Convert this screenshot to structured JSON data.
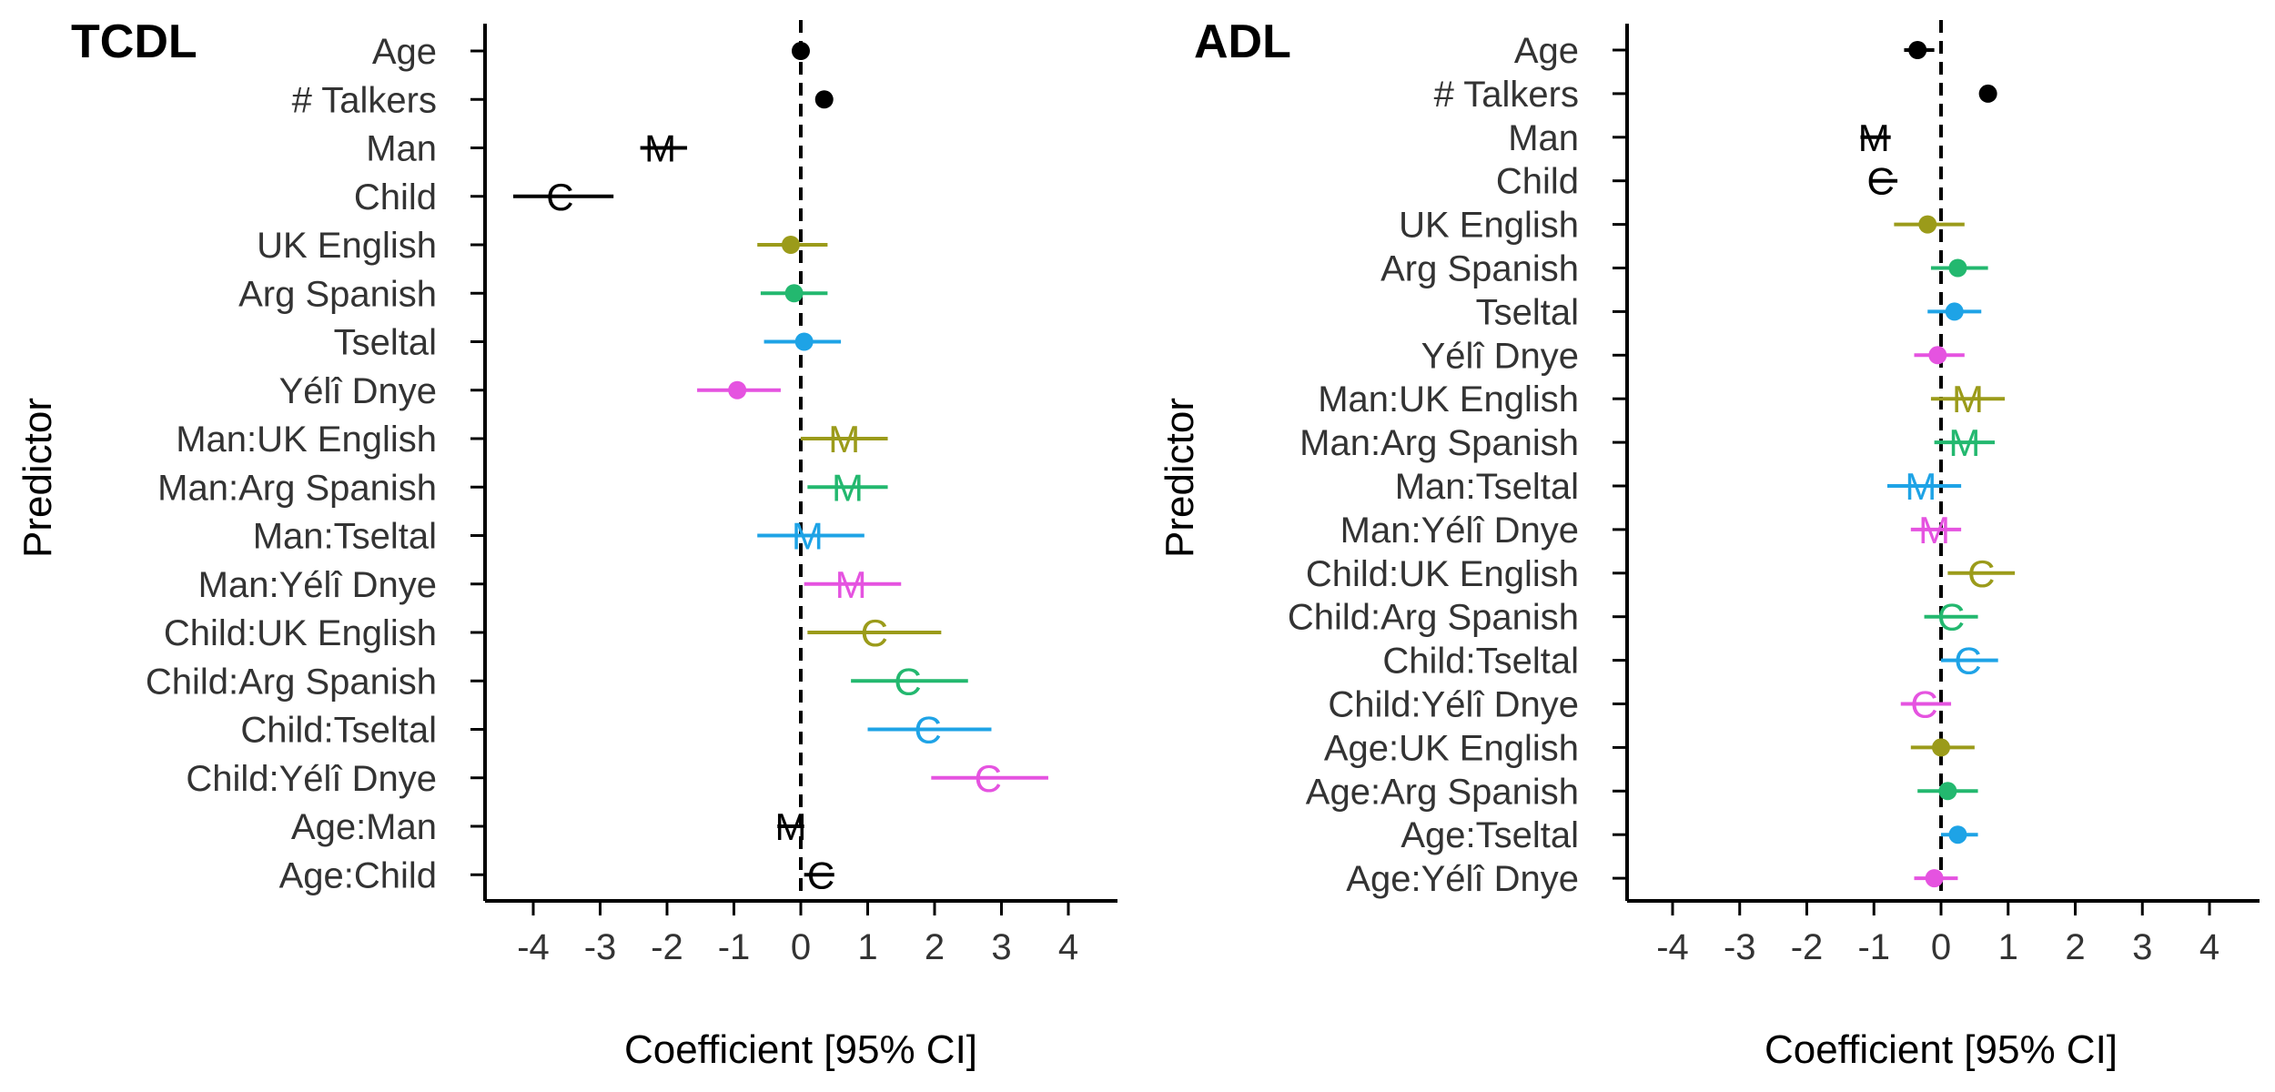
{
  "figure": {
    "y_axis_title": "Predictor",
    "x_axis_title": "Coefficient [95% CI]"
  },
  "chart_data": [
    {
      "type": "scatter",
      "panel": "TCDL",
      "title": "TCDL",
      "xlabel": "Coefficient [95% CI]",
      "ylabel": "Predictor",
      "xlim": [
        -4.7,
        4.7
      ],
      "xticks": [
        -4,
        -3,
        -2,
        -1,
        0,
        1,
        2,
        3,
        4
      ],
      "reference_line": {
        "x": 0,
        "style": "dashed"
      },
      "grid": false,
      "points": [
        {
          "label": "Age",
          "estimate": 0.0,
          "lower": -0.1,
          "upper": 0.1,
          "marker": "dot",
          "color": "#000000"
        },
        {
          "label": "# Talkers",
          "estimate": 0.35,
          "lower": 0.3,
          "upper": 0.4,
          "marker": "dot",
          "color": "#000000"
        },
        {
          "label": "Man",
          "estimate": -2.1,
          "lower": -2.4,
          "upper": -1.7,
          "marker": "M",
          "color": "#000000"
        },
        {
          "label": "Child",
          "estimate": -3.6,
          "lower": -4.3,
          "upper": -2.8,
          "marker": "C",
          "color": "#000000"
        },
        {
          "label": "UK English",
          "estimate": -0.15,
          "lower": -0.65,
          "upper": 0.4,
          "marker": "dot",
          "color": "#9B9B1A"
        },
        {
          "label": "Arg Spanish",
          "estimate": -0.1,
          "lower": -0.6,
          "upper": 0.4,
          "marker": "dot",
          "color": "#23B86F"
        },
        {
          "label": "Tseltal",
          "estimate": 0.05,
          "lower": -0.55,
          "upper": 0.6,
          "marker": "dot",
          "color": "#1EA3E6"
        },
        {
          "label": "Yélî Dnye",
          "estimate": -0.95,
          "lower": -1.55,
          "upper": -0.3,
          "marker": "dot",
          "color": "#E553E0"
        },
        {
          "label": "Man:UK English",
          "estimate": 0.65,
          "lower": 0.0,
          "upper": 1.3,
          "marker": "M",
          "color": "#9B9B1A"
        },
        {
          "label": "Man:Arg Spanish",
          "estimate": 0.7,
          "lower": 0.1,
          "upper": 1.3,
          "marker": "M",
          "color": "#23B86F"
        },
        {
          "label": "Man:Tseltal",
          "estimate": 0.1,
          "lower": -0.65,
          "upper": 0.95,
          "marker": "M",
          "color": "#1EA3E6"
        },
        {
          "label": "Man:Yélî Dnye",
          "estimate": 0.75,
          "lower": 0.05,
          "upper": 1.5,
          "marker": "M",
          "color": "#E553E0"
        },
        {
          "label": "Child:UK English",
          "estimate": 1.1,
          "lower": 0.1,
          "upper": 2.1,
          "marker": "C",
          "color": "#9B9B1A"
        },
        {
          "label": "Child:Arg Spanish",
          "estimate": 1.6,
          "lower": 0.75,
          "upper": 2.5,
          "marker": "C",
          "color": "#23B86F"
        },
        {
          "label": "Child:Tseltal",
          "estimate": 1.9,
          "lower": 1.0,
          "upper": 2.85,
          "marker": "C",
          "color": "#1EA3E6"
        },
        {
          "label": "Child:Yélî Dnye",
          "estimate": 2.8,
          "lower": 1.95,
          "upper": 3.7,
          "marker": "C",
          "color": "#E553E0"
        },
        {
          "label": "Age:Man",
          "estimate": -0.15,
          "lower": -0.35,
          "upper": 0.05,
          "marker": "M",
          "color": "#000000"
        },
        {
          "label": "Age:Child",
          "estimate": 0.3,
          "lower": 0.05,
          "upper": 0.5,
          "marker": "C",
          "color": "#000000"
        }
      ]
    },
    {
      "type": "scatter",
      "panel": "ADL",
      "title": "ADL",
      "xlabel": "Coefficient [95% CI]",
      "ylabel": "Predictor",
      "xlim": [
        -4.7,
        4.7
      ],
      "xticks": [
        -4,
        -3,
        -2,
        -1,
        0,
        1,
        2,
        3,
        4
      ],
      "reference_line": {
        "x": 0,
        "style": "dashed"
      },
      "grid": false,
      "points": [
        {
          "label": "Age",
          "estimate": -0.35,
          "lower": -0.55,
          "upper": -0.1,
          "marker": "dot",
          "color": "#000000"
        },
        {
          "label": "# Talkers",
          "estimate": 0.7,
          "lower": 0.65,
          "upper": 0.75,
          "marker": "dot",
          "color": "#000000"
        },
        {
          "label": "Man",
          "estimate": -1.0,
          "lower": -1.2,
          "upper": -0.75,
          "marker": "M",
          "color": "#000000"
        },
        {
          "label": "Child",
          "estimate": -0.9,
          "lower": -1.05,
          "upper": -0.65,
          "marker": "C",
          "color": "#000000"
        },
        {
          "label": "UK English",
          "estimate": -0.2,
          "lower": -0.7,
          "upper": 0.35,
          "marker": "dot",
          "color": "#9B9B1A"
        },
        {
          "label": "Arg Spanish",
          "estimate": 0.25,
          "lower": -0.15,
          "upper": 0.7,
          "marker": "dot",
          "color": "#23B86F"
        },
        {
          "label": "Tseltal",
          "estimate": 0.2,
          "lower": -0.2,
          "upper": 0.6,
          "marker": "dot",
          "color": "#1EA3E6"
        },
        {
          "label": "Yélî Dnye",
          "estimate": -0.05,
          "lower": -0.4,
          "upper": 0.35,
          "marker": "dot",
          "color": "#E553E0"
        },
        {
          "label": "Man:UK English",
          "estimate": 0.4,
          "lower": -0.15,
          "upper": 0.95,
          "marker": "M",
          "color": "#9B9B1A"
        },
        {
          "label": "Man:Arg Spanish",
          "estimate": 0.35,
          "lower": -0.1,
          "upper": 0.8,
          "marker": "M",
          "color": "#23B86F"
        },
        {
          "label": "Man:Tseltal",
          "estimate": -0.3,
          "lower": -0.8,
          "upper": 0.3,
          "marker": "M",
          "color": "#1EA3E6"
        },
        {
          "label": "Man:Yélî Dnye",
          "estimate": -0.1,
          "lower": -0.45,
          "upper": 0.3,
          "marker": "M",
          "color": "#E553E0"
        },
        {
          "label": "Child:UK English",
          "estimate": 0.6,
          "lower": 0.1,
          "upper": 1.1,
          "marker": "C",
          "color": "#9B9B1A"
        },
        {
          "label": "Child:Arg Spanish",
          "estimate": 0.15,
          "lower": -0.25,
          "upper": 0.55,
          "marker": "C",
          "color": "#23B86F"
        },
        {
          "label": "Child:Tseltal",
          "estimate": 0.4,
          "lower": 0.0,
          "upper": 0.85,
          "marker": "C",
          "color": "#1EA3E6"
        },
        {
          "label": "Child:Yélî Dnye",
          "estimate": -0.25,
          "lower": -0.6,
          "upper": 0.15,
          "marker": "C",
          "color": "#E553E0"
        },
        {
          "label": "Age:UK English",
          "estimate": 0.0,
          "lower": -0.45,
          "upper": 0.5,
          "marker": "dot",
          "color": "#9B9B1A"
        },
        {
          "label": "Age:Arg Spanish",
          "estimate": 0.1,
          "lower": -0.35,
          "upper": 0.55,
          "marker": "dot",
          "color": "#23B86F"
        },
        {
          "label": "Age:Tseltal",
          "estimate": 0.25,
          "lower": 0.0,
          "upper": 0.55,
          "marker": "dot",
          "color": "#1EA3E6"
        },
        {
          "label": "Age:Yélî Dnye",
          "estimate": -0.1,
          "lower": -0.4,
          "upper": 0.25,
          "marker": "dot",
          "color": "#E553E0"
        }
      ]
    }
  ]
}
